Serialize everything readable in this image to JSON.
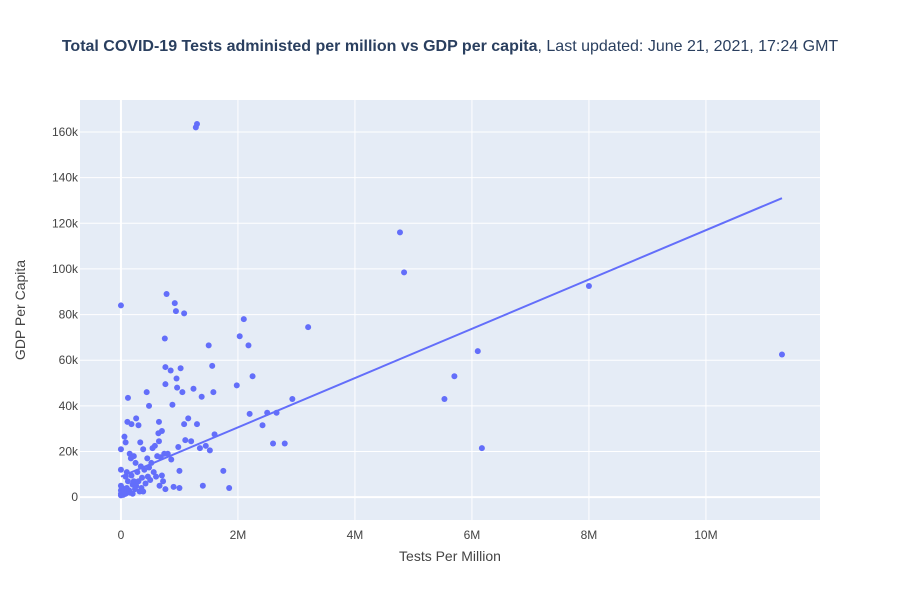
{
  "chart_data": {
    "type": "scatter",
    "title_main": "Total COVID-19 Tests administed per million vs GDP per capita",
    "title_sub": ", Last updated: June 21, 2021, 17:24 GMT",
    "xlabel": "Tests Per Million",
    "ylabel": "GDP Per Capita",
    "xlim": [
      -700000,
      11950000
    ],
    "ylim": [
      -10000,
      174000
    ],
    "x_ticks": [
      0,
      2000000,
      4000000,
      6000000,
      8000000,
      10000000
    ],
    "x_tick_labels": [
      "0",
      "2M",
      "4M",
      "6M",
      "8M",
      "10M"
    ],
    "y_ticks": [
      0,
      20000,
      40000,
      60000,
      80000,
      100000,
      120000,
      140000,
      160000
    ],
    "y_tick_labels": [
      "0",
      "20k",
      "40k",
      "60k",
      "80k",
      "100k",
      "120k",
      "140k",
      "160k"
    ],
    "grid": true,
    "colors": {
      "plot_bg": "#e5ecf6",
      "grid": "#ffffff",
      "marker": "#636efa",
      "line": "#636efa",
      "text": "#2a3f5f"
    },
    "trendline": {
      "x": [
        0,
        11300000
      ],
      "y": [
        9000,
        131000
      ]
    },
    "points": [
      [
        0,
        84000
      ],
      [
        0,
        21000
      ],
      [
        0,
        12000
      ],
      [
        0,
        5000
      ],
      [
        0,
        3000
      ],
      [
        0,
        1500
      ],
      [
        0,
        800
      ],
      [
        20000,
        4000
      ],
      [
        20000,
        2000
      ],
      [
        40000,
        1000
      ],
      [
        50000,
        3000
      ],
      [
        60000,
        26500
      ],
      [
        80000,
        24000
      ],
      [
        80000,
        1500
      ],
      [
        80000,
        9000
      ],
      [
        100000,
        11000
      ],
      [
        100000,
        4000
      ],
      [
        110000,
        33000
      ],
      [
        120000,
        43500
      ],
      [
        120000,
        7000
      ],
      [
        140000,
        3000
      ],
      [
        150000,
        19000
      ],
      [
        150000,
        2000
      ],
      [
        170000,
        17000
      ],
      [
        180000,
        32000
      ],
      [
        180000,
        9500
      ],
      [
        200000,
        5500
      ],
      [
        200000,
        1500
      ],
      [
        220000,
        18000
      ],
      [
        220000,
        7000
      ],
      [
        240000,
        3500
      ],
      [
        250000,
        15000
      ],
      [
        260000,
        34500
      ],
      [
        260000,
        5000
      ],
      [
        280000,
        11000
      ],
      [
        300000,
        31500
      ],
      [
        300000,
        7000
      ],
      [
        320000,
        2500
      ],
      [
        330000,
        24000
      ],
      [
        340000,
        13500
      ],
      [
        350000,
        4000
      ],
      [
        360000,
        8500
      ],
      [
        380000,
        21000
      ],
      [
        380000,
        2500
      ],
      [
        400000,
        12000
      ],
      [
        420000,
        6000
      ],
      [
        440000,
        46000
      ],
      [
        450000,
        17000
      ],
      [
        460000,
        9000
      ],
      [
        480000,
        40000
      ],
      [
        480000,
        13000
      ],
      [
        500000,
        7500
      ],
      [
        520000,
        15000
      ],
      [
        540000,
        21500
      ],
      [
        560000,
        11000
      ],
      [
        580000,
        22500
      ],
      [
        600000,
        9000
      ],
      [
        620000,
        18000
      ],
      [
        640000,
        28000
      ],
      [
        650000,
        33000
      ],
      [
        650000,
        24500
      ],
      [
        660000,
        5000
      ],
      [
        680000,
        17500
      ],
      [
        700000,
        29000
      ],
      [
        700000,
        9500
      ],
      [
        720000,
        7000
      ],
      [
        740000,
        19000
      ],
      [
        750000,
        69500
      ],
      [
        760000,
        57000
      ],
      [
        760000,
        49500
      ],
      [
        760000,
        3500
      ],
      [
        780000,
        89000
      ],
      [
        800000,
        19000
      ],
      [
        850000,
        55500
      ],
      [
        860000,
        16500
      ],
      [
        880000,
        40500
      ],
      [
        900000,
        4500
      ],
      [
        920000,
        85000
      ],
      [
        940000,
        81500
      ],
      [
        950000,
        52000
      ],
      [
        960000,
        48000
      ],
      [
        980000,
        22000
      ],
      [
        1000000,
        11500
      ],
      [
        1000000,
        4000
      ],
      [
        1020000,
        56500
      ],
      [
        1050000,
        46000
      ],
      [
        1080000,
        80500
      ],
      [
        1080000,
        32000
      ],
      [
        1100000,
        25000
      ],
      [
        1150000,
        34500
      ],
      [
        1200000,
        24500
      ],
      [
        1240000,
        47500
      ],
      [
        1280000,
        162000
      ],
      [
        1300000,
        163500
      ],
      [
        1300000,
        32000
      ],
      [
        1350000,
        21500
      ],
      [
        1380000,
        44000
      ],
      [
        1400000,
        5000
      ],
      [
        1450000,
        22500
      ],
      [
        1500000,
        66500
      ],
      [
        1520000,
        20500
      ],
      [
        1560000,
        57500
      ],
      [
        1580000,
        46000
      ],
      [
        1600000,
        27500
      ],
      [
        1750000,
        11500
      ],
      [
        1850000,
        4000
      ],
      [
        1980000,
        49000
      ],
      [
        2030000,
        70500
      ],
      [
        2100000,
        78000
      ],
      [
        2180000,
        66500
      ],
      [
        2200000,
        36500
      ],
      [
        2250000,
        53000
      ],
      [
        2420000,
        31500
      ],
      [
        2500000,
        37000
      ],
      [
        2600000,
        23500
      ],
      [
        2660000,
        37000
      ],
      [
        2800000,
        23500
      ],
      [
        2930000,
        43000
      ],
      [
        3200000,
        74500
      ],
      [
        4770000,
        116000
      ],
      [
        4840000,
        98500
      ],
      [
        5530000,
        43000
      ],
      [
        5700000,
        53000
      ],
      [
        6100000,
        64000
      ],
      [
        6170000,
        21500
      ],
      [
        8000000,
        92500
      ],
      [
        11300000,
        62500
      ]
    ]
  }
}
